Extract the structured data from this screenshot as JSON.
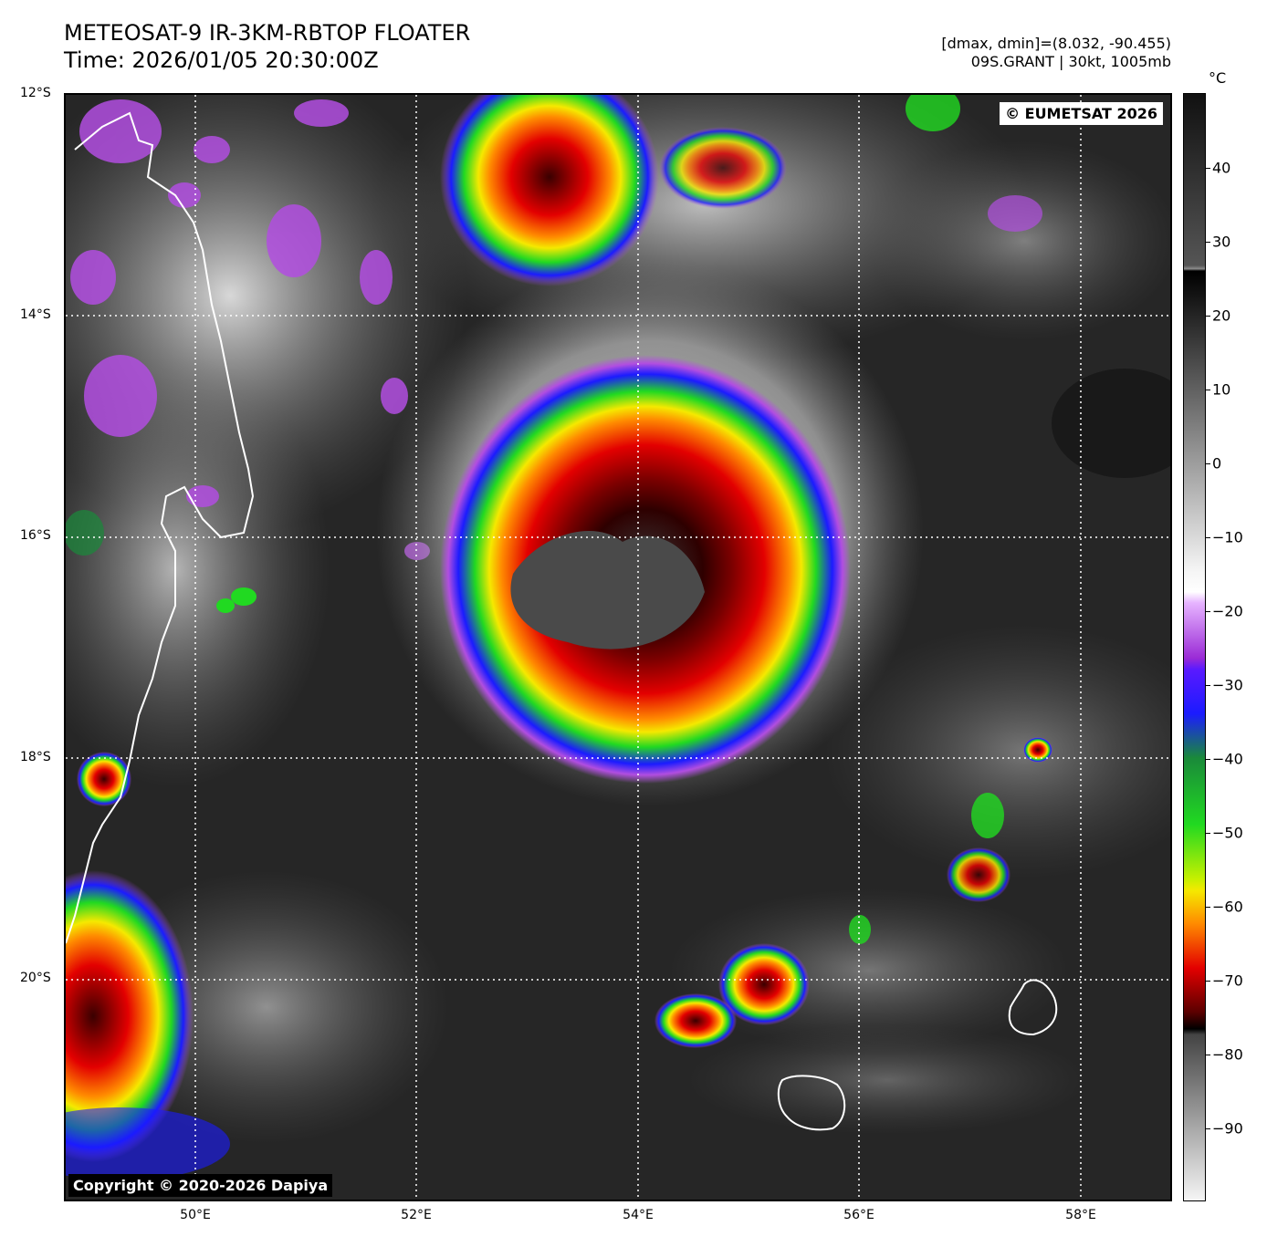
{
  "header": {
    "title_line1": "METEOSAT-9 IR-3KM-RBTOP FLOATER",
    "title_line2": "Time: 2026/01/05 20:30:00Z",
    "range_text": "[dmax, dmin]=(8.032, -90.455)",
    "storm_text": "09S.GRANT | 30kt, 1005mb"
  },
  "map": {
    "eumetsat_badge": "© EUMETSAT 2026",
    "copyright_badge": "Copyright © 2020-2026 Dapiya",
    "lat_labels": [
      "12°S",
      "14°S",
      "16°S",
      "18°S",
      "20°S"
    ],
    "lon_labels": [
      "50°E",
      "52°E",
      "54°E",
      "56°E",
      "58°E"
    ]
  },
  "colorbar": {
    "unit": "°C",
    "ticks": [
      "40",
      "30",
      "20",
      "10",
      "0",
      "−10",
      "−20",
      "−30",
      "−40",
      "−50",
      "−60",
      "−70",
      "−80",
      "−90"
    ],
    "colors": {
      "warm_top": "#111111",
      "gray_band": "#8c8c8c",
      "purple": "#b14ee0",
      "blue": "#1b1bff",
      "green": "#21d921",
      "yellow": "#f5e900",
      "orange": "#ff8a00",
      "red": "#e30000",
      "dark_red": "#5a0000",
      "black": "#000000"
    }
  },
  "features": {
    "main_storm": "09S.GRANT",
    "landmasses": [
      "Madagascar",
      "Réunion",
      "Mauritius"
    ]
  }
}
